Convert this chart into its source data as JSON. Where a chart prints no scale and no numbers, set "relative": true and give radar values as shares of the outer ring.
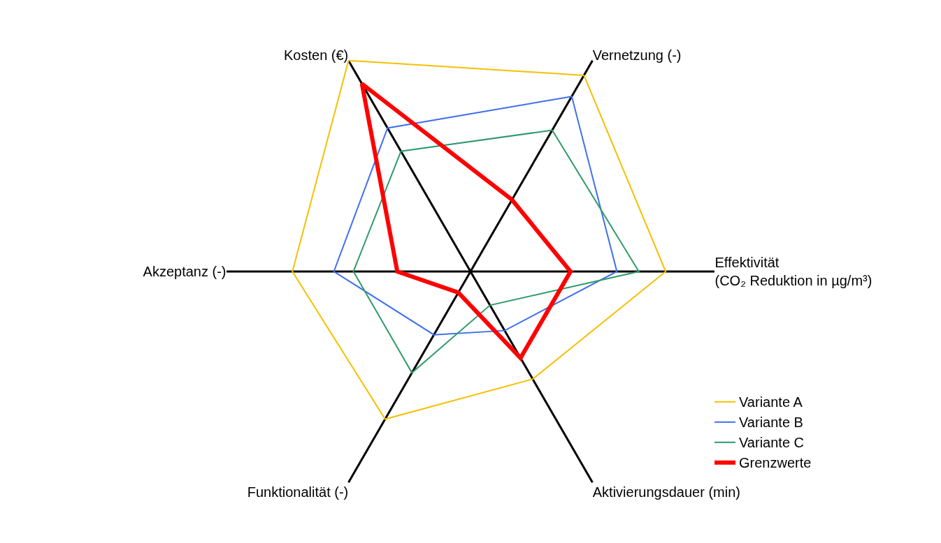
{
  "chart_data": {
    "type": "radar",
    "relative": true,
    "grid": true,
    "legend": "bottom right",
    "marker": "none",
    "categories": [
      "Vernetzung (-)",
      "Effektivität\n(CO₂ Reduktion in µg/m³)",
      "Aktivierungsdauer (min)",
      "Funktionalität (-)",
      "Akzeptanz (-)",
      "Kosten (€)"
    ],
    "series": [
      {
        "name": "Variante A",
        "color": "#f5c000",
        "values": [
          0.93,
          0.8,
          0.51,
          0.7,
          0.73,
          1.0
        ]
      },
      {
        "name": "Variante B",
        "color": "#3f6fef",
        "values": [
          0.83,
          0.6,
          0.28,
          0.3,
          0.56,
          0.68
        ]
      },
      {
        "name": "Variante C",
        "color": "#2f9a6a",
        "values": [
          0.67,
          0.69,
          0.16,
          0.48,
          0.48,
          0.57
        ]
      },
      {
        "name": "Grenzwerte",
        "color": "#ff0000",
        "values": [
          0.34,
          0.41,
          0.41,
          0.1,
          0.3,
          0.89
        ]
      }
    ]
  }
}
